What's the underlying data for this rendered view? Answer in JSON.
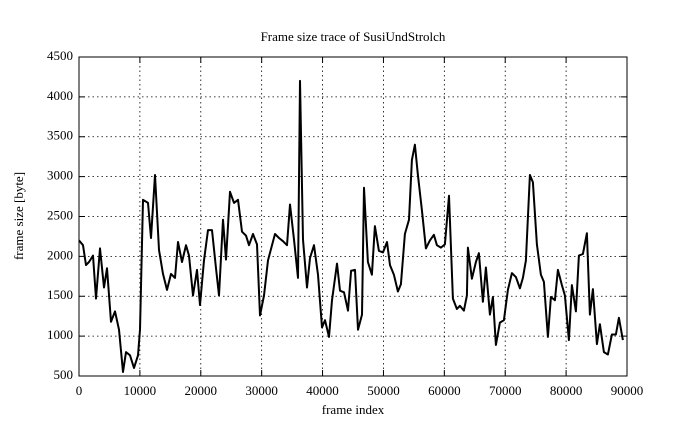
{
  "chart_data": {
    "type": "line",
    "title": "Frame size trace of SusiUndStrolch",
    "xlabel": "frame index",
    "ylabel": "frame size [byte]",
    "xlim": [
      0,
      90000
    ],
    "xticks": [
      0,
      10000,
      20000,
      30000,
      40000,
      50000,
      60000,
      70000,
      80000,
      90000
    ],
    "ylim": [
      500,
      4500
    ],
    "yticks": [
      500,
      1000,
      1500,
      2000,
      2500,
      3000,
      3500,
      4000,
      4500
    ],
    "grid": true,
    "color": "#000000",
    "x": [
      0,
      660,
      1150,
      1640,
      2300,
      2790,
      3450,
      4110,
      4600,
      5260,
      5910,
      6570,
      7230,
      7720,
      8380,
      9030,
      9690,
      10020,
      10510,
      11330,
      11820,
      12480,
      13140,
      13790,
      14450,
      15110,
      15760,
      16260,
      16910,
      17570,
      18060,
      18720,
      19380,
      19870,
      20530,
      21190,
      21840,
      22500,
      22990,
      23650,
      24140,
      24800,
      25450,
      26110,
      26770,
      27420,
      27920,
      28570,
      29230,
      29720,
      30380,
      31040,
      31690,
      32190,
      32840,
      33500,
      34160,
      34650,
      35310,
      35970,
      36290,
      36790,
      37440,
      37940,
      38590,
      39250,
      39910,
      40400,
      41060,
      41550,
      42370,
      42860,
      43520,
      44180,
      44680,
      45330,
      45820,
      46480,
      46800,
      47450,
      48110,
      48600,
      49260,
      49920,
      50580,
      51070,
      51720,
      52380,
      52870,
      53530,
      54190,
      54680,
      55170,
      55660,
      56320,
      56980,
      57630,
      58290,
      58780,
      59440,
      60100,
      60760,
      61410,
      62070,
      62560,
      63220,
      63710,
      63870,
      64530,
      65190,
      65680,
      66340,
      66830,
      67490,
      67980,
      68470,
      69130,
      69790,
      70440,
      71100,
      71760,
      72410,
      72900,
      73400,
      74050,
      74550,
      75200,
      75860,
      76350,
      77010,
      77500,
      78160,
      78650,
      79310,
      79800,
      80460,
      80950,
      81610,
      82100,
      82760,
      83410,
      83900,
      84400,
      85050,
      85550,
      86210,
      86860,
      87520,
      88180,
      88670,
      89330
    ],
    "values": [
      2200,
      2140,
      1890,
      1930,
      2010,
      1470,
      2100,
      1610,
      1850,
      1180,
      1310,
      1080,
      550,
      800,
      760,
      600,
      760,
      1080,
      2710,
      2670,
      2230,
      3020,
      2080,
      1780,
      1580,
      1780,
      1730,
      2180,
      1930,
      2140,
      2010,
      1510,
      1830,
      1390,
      1950,
      2330,
      2330,
      1850,
      1510,
      2460,
      1960,
      2810,
      2670,
      2710,
      2310,
      2260,
      2140,
      2280,
      2150,
      1260,
      1510,
      1950,
      2140,
      2280,
      2230,
      2190,
      2140,
      2650,
      2210,
      1730,
      4200,
      2210,
      1610,
      1980,
      2140,
      1770,
      1110,
      1200,
      990,
      1450,
      1910,
      1570,
      1550,
      1320,
      1820,
      1830,
      1080,
      1270,
      2860,
      1930,
      1770,
      2380,
      2070,
      2050,
      2180,
      1890,
      1770,
      1560,
      1650,
      2280,
      2460,
      3210,
      3400,
      3020,
      2580,
      2100,
      2200,
      2270,
      2140,
      2110,
      2150,
      2760,
      1470,
      1340,
      1380,
      1320,
      1510,
      2110,
      1720,
      1930,
      2040,
      1430,
      1860,
      1270,
      1490,
      890,
      1170,
      1200,
      1580,
      1790,
      1740,
      1600,
      1730,
      1950,
      3020,
      2930,
      2150,
      1770,
      1680,
      990,
      1490,
      1450,
      1830,
      1640,
      1510,
      950,
      1640,
      1310,
      2010,
      2030,
      2290,
      1270,
      1590,
      900,
      1150,
      800,
      770,
      1020,
      1020,
      1230,
      950
    ]
  }
}
